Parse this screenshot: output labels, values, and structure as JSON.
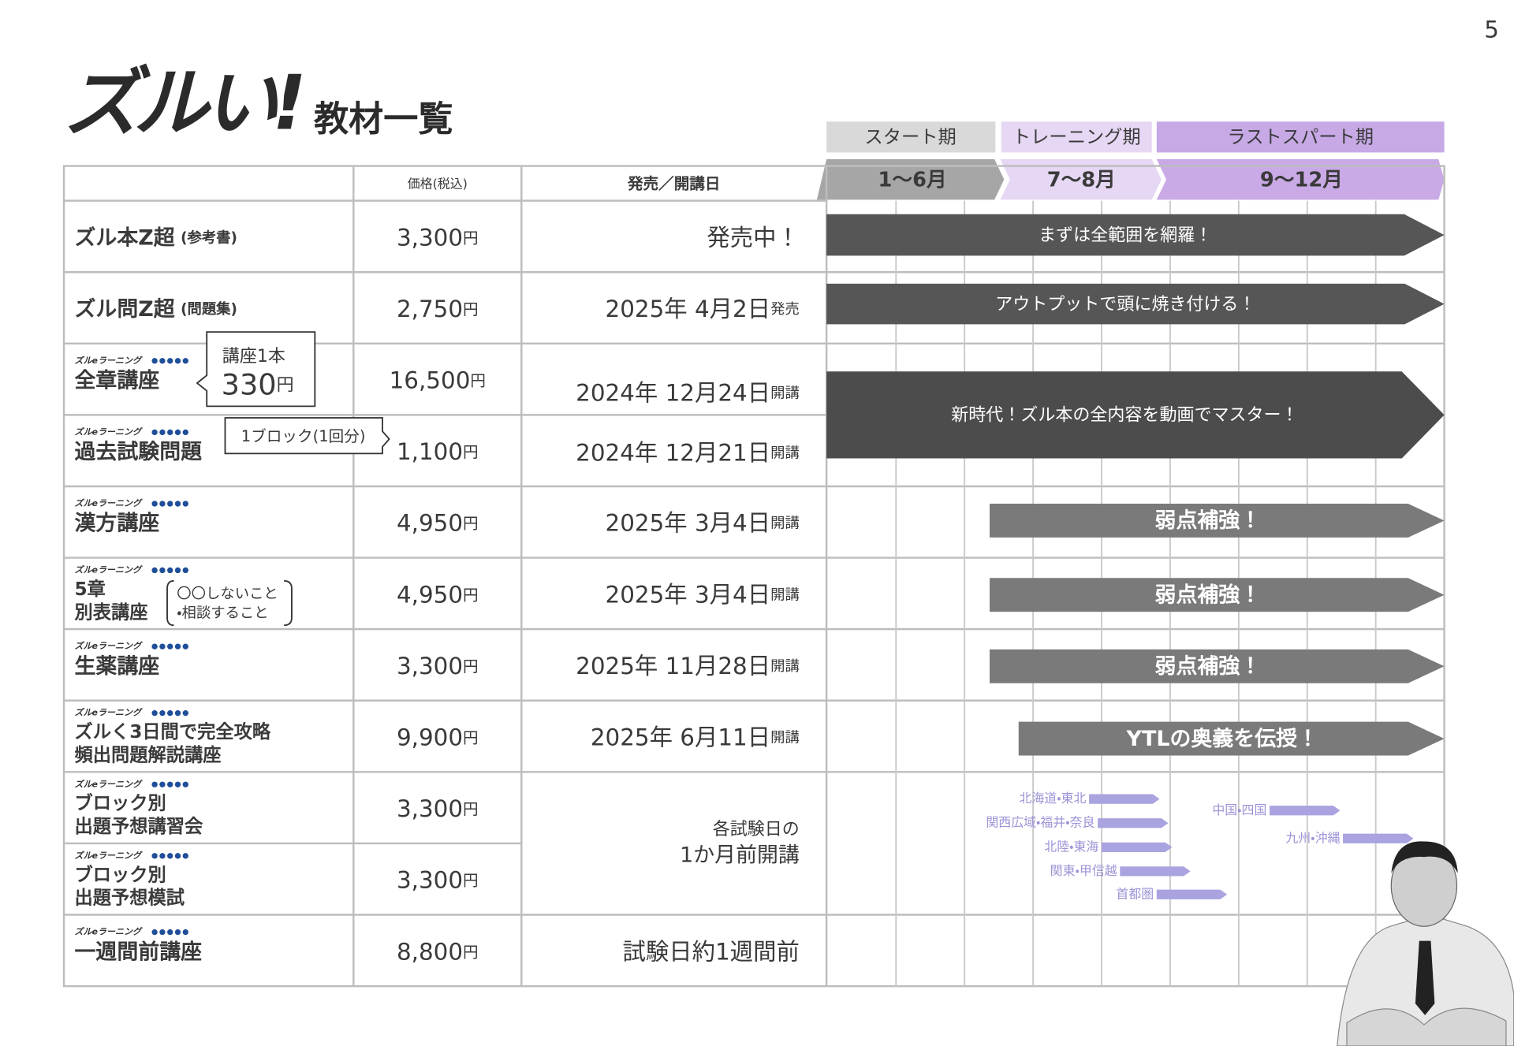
{
  "page_number": "5",
  "header": {
    "logo": "ズルい!",
    "title": "教材一覧"
  },
  "phases": [
    {
      "name": "スタート期",
      "months": "1～6月"
    },
    {
      "name": "トレーニング期",
      "months": "7～8月"
    },
    {
      "name": "ラストスパート期",
      "months": "9～12月"
    }
  ],
  "table": {
    "columns": [
      "価格(税込)",
      "発売／開講日"
    ],
    "yen": "円",
    "elearning_label": "ズルeラーニング",
    "rows": [
      {
        "name": [
          "ズル本Z超"
        ],
        "note": "(参考書)",
        "price": "3,300",
        "date": "発売中！"
      },
      {
        "name": [
          "ズル問Z超"
        ],
        "note": "(問題集)",
        "price": "2,750",
        "date": "2025年 4月2日",
        "date_suffix": "発売"
      },
      {
        "name": [
          "全章講座"
        ],
        "price": "16,500",
        "date": "2024年 12月24日",
        "date_suffix": "開講"
      },
      {
        "name": [
          "過去試験問題"
        ],
        "price": "1,100",
        "date": "2024年 12月21日",
        "date_suffix": "開講"
      },
      {
        "name": [
          "漢方講座"
        ],
        "price": "4,950",
        "date": "2025年 3月4日",
        "date_suffix": "開講"
      },
      {
        "name": [
          "5章",
          "別表講座"
        ],
        "price": "4,950",
        "date": "2025年 3月4日",
        "date_suffix": "開講"
      },
      {
        "name": [
          "生薬講座"
        ],
        "price": "3,300",
        "date": "2025年 11月28日",
        "date_suffix": "開講"
      },
      {
        "name": [
          "ズルく3日間で完全攻略",
          "頻出問題解説講座"
        ],
        "price": "9,900",
        "date": "2025年 6月11日",
        "date_suffix": "開講"
      },
      {
        "name": [
          "ブロック別",
          "出題予想講習会"
        ],
        "price": "3,300"
      },
      {
        "name": [
          "ブロック別",
          "出題予想模試"
        ],
        "price": "3,300"
      },
      {
        "name": [
          "一週間前講座"
        ],
        "price": "8,800",
        "date": "試験日約1週間前"
      }
    ],
    "shared_date": [
      "各試験日の",
      "1か月前開講"
    ]
  },
  "callouts": {
    "lecture_unit": "講座1本",
    "lecture_price": "330",
    "block_unit": "1ブロック(1回分)",
    "rules": [
      "〇〇しないこと",
      "・相談すること"
    ]
  },
  "timeline": {
    "bars": [
      "まずは全範囲を網羅！",
      "アウトプットで頭に焼き付ける！",
      "新時代！ズル本の全内容を動画でマスター！",
      "弱点補強！",
      "弱点補強！",
      "弱点補強！",
      "YTLの奥義を伝授！"
    ],
    "regions": [
      "北海道・東北",
      "関西広域・福井・奈良",
      "北陸・東海",
      "関東・甲信越",
      "首都圏",
      "中国・四国",
      "九州・沖縄"
    ]
  }
}
